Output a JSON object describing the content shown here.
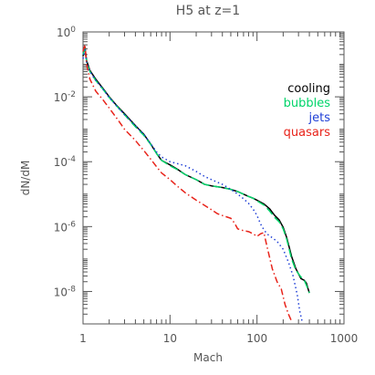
{
  "chart_data": {
    "type": "line",
    "title": "H5  at  z=1",
    "xlabel": "Mach",
    "ylabel": "dN/dM",
    "xscale": "log",
    "yscale": "log",
    "xlim": [
      1,
      1000
    ],
    "ylim": [
      1e-09,
      1
    ],
    "x_ticks": [
      1,
      10,
      100,
      1000
    ],
    "x_tick_labels": [
      "1",
      "10",
      "100",
      "1000"
    ],
    "y_ticks": [
      1,
      0.01,
      0.0001,
      1e-06,
      1e-08
    ],
    "y_tick_labels": [
      {
        "base": "10",
        "exp": "0"
      },
      {
        "base": "10",
        "exp": "-2"
      },
      {
        "base": "10",
        "exp": "-4"
      },
      {
        "base": "10",
        "exp": "-6"
      },
      {
        "base": "10",
        "exp": "-8"
      }
    ],
    "grid": false,
    "legend_position": "top-right",
    "series": [
      {
        "name": "cooling",
        "color": "#000000",
        "dash": "solid",
        "points": [
          [
            1.0,
            0.18
          ],
          [
            1.05,
            0.35
          ],
          [
            1.1,
            0.13
          ],
          [
            1.2,
            0.065
          ],
          [
            1.4,
            0.035
          ],
          [
            1.7,
            0.018
          ],
          [
            2,
            0.01
          ],
          [
            2.5,
            0.005
          ],
          [
            3,
            0.003
          ],
          [
            4,
            0.0013
          ],
          [
            5,
            0.0007
          ],
          [
            6,
            0.00035
          ],
          [
            7,
            0.00018
          ],
          [
            8,
            0.00011
          ],
          [
            10,
            8e-05
          ],
          [
            12,
            6e-05
          ],
          [
            15,
            4e-05
          ],
          [
            20,
            2.8e-05
          ],
          [
            25,
            2e-05
          ],
          [
            30,
            1.8e-05
          ],
          [
            40,
            1.6e-05
          ],
          [
            50,
            1.4e-05
          ],
          [
            60,
            1.2e-05
          ],
          [
            70,
            1e-05
          ],
          [
            80,
            8.5e-06
          ],
          [
            90,
            7.5e-06
          ],
          [
            100,
            6.5e-06
          ],
          [
            120,
            5e-06
          ],
          [
            140,
            3.5e-06
          ],
          [
            160,
            2.2e-06
          ],
          [
            180,
            1.6e-06
          ],
          [
            200,
            9.5e-07
          ],
          [
            220,
            4.5e-07
          ],
          [
            250,
            1.2e-07
          ],
          [
            280,
            5e-08
          ],
          [
            320,
            2.5e-08
          ],
          [
            350,
            2.2e-08
          ],
          [
            370,
            1.8e-08
          ],
          [
            380,
            1.4e-08
          ],
          [
            400,
            9e-09
          ]
        ]
      },
      {
        "name": "bubbles",
        "color": "#00d46a",
        "dash": "long-dash",
        "points": [
          [
            1.0,
            0.2
          ],
          [
            1.05,
            0.3
          ],
          [
            1.1,
            0.12
          ],
          [
            1.2,
            0.06
          ],
          [
            1.4,
            0.032
          ],
          [
            1.7,
            0.017
          ],
          [
            2,
            0.0095
          ],
          [
            2.5,
            0.0048
          ],
          [
            3,
            0.0028
          ],
          [
            4,
            0.0012
          ],
          [
            5,
            0.00065
          ],
          [
            6,
            0.00034
          ],
          [
            7,
            0.00018
          ],
          [
            8,
            0.00011
          ],
          [
            10,
            7.5e-05
          ],
          [
            12,
            5.8e-05
          ],
          [
            15,
            4e-05
          ],
          [
            20,
            2.8e-05
          ],
          [
            25,
            2e-05
          ],
          [
            30,
            1.8e-05
          ],
          [
            40,
            1.6e-05
          ],
          [
            50,
            1.4e-05
          ],
          [
            60,
            1.2e-05
          ],
          [
            70,
            1e-05
          ],
          [
            80,
            8.5e-06
          ],
          [
            90,
            7.5e-06
          ],
          [
            100,
            6.2e-06
          ],
          [
            120,
            4.6e-06
          ],
          [
            140,
            3e-06
          ],
          [
            160,
            1.9e-06
          ],
          [
            180,
            1.4e-06
          ],
          [
            200,
            8.5e-07
          ],
          [
            220,
            4e-07
          ],
          [
            250,
            1e-07
          ],
          [
            280,
            4.5e-08
          ],
          [
            320,
            2.8e-08
          ],
          [
            350,
            2.2e-08
          ],
          [
            380,
            1.3e-08
          ],
          [
            400,
            9e-09
          ]
        ]
      },
      {
        "name": "jets",
        "color": "#1f3fd6",
        "dash": "dotted",
        "points": [
          [
            1.0,
            0.15
          ],
          [
            1.05,
            0.28
          ],
          [
            1.1,
            0.11
          ],
          [
            1.2,
            0.06
          ],
          [
            1.4,
            0.032
          ],
          [
            1.7,
            0.017
          ],
          [
            2,
            0.0095
          ],
          [
            2.5,
            0.0048
          ],
          [
            3,
            0.0028
          ],
          [
            4,
            0.0013
          ],
          [
            5,
            0.0007
          ],
          [
            6,
            0.00036
          ],
          [
            7,
            0.0002
          ],
          [
            8,
            0.00014
          ],
          [
            10,
            0.0001
          ],
          [
            15,
            7.5e-05
          ],
          [
            20,
            5e-05
          ],
          [
            25,
            3.5e-05
          ],
          [
            30,
            2.8e-05
          ],
          [
            40,
            2e-05
          ],
          [
            50,
            1.4e-05
          ],
          [
            60,
            1e-05
          ],
          [
            70,
            7.2e-06
          ],
          [
            80,
            5.2e-06
          ],
          [
            90,
            3.5e-06
          ],
          [
            100,
            2.2e-06
          ],
          [
            110,
            1.2e-06
          ],
          [
            120,
            8e-07
          ],
          [
            130,
            6e-07
          ],
          [
            150,
            4.5e-07
          ],
          [
            170,
            3.5e-07
          ],
          [
            200,
            2e-07
          ],
          [
            230,
            8e-08
          ],
          [
            260,
            3e-08
          ],
          [
            290,
            8e-09
          ],
          [
            310,
            2.5e-09
          ],
          [
            330,
            1.2e-09
          ]
        ]
      },
      {
        "name": "quasars",
        "color": "#e8231a",
        "dash": "dash-dot",
        "points": [
          [
            1.0,
            0.25
          ],
          [
            1.05,
            0.4
          ],
          [
            1.1,
            0.1
          ],
          [
            1.2,
            0.035
          ],
          [
            1.4,
            0.015
          ],
          [
            1.7,
            0.008
          ],
          [
            2,
            0.0045
          ],
          [
            2.5,
            0.002
          ],
          [
            3,
            0.001
          ],
          [
            4,
            0.00045
          ],
          [
            5,
            0.00022
          ],
          [
            6,
            0.00012
          ],
          [
            7,
            7e-05
          ],
          [
            8,
            4.5e-05
          ],
          [
            10,
            2.8e-05
          ],
          [
            12,
            1.8e-05
          ],
          [
            15,
            1.1e-05
          ],
          [
            20,
            6.5e-06
          ],
          [
            25,
            4.5e-06
          ],
          [
            30,
            3.3e-06
          ],
          [
            35,
            2.5e-06
          ],
          [
            40,
            2.2e-06
          ],
          [
            50,
            1.8e-06
          ],
          [
            55,
            1.3e-06
          ],
          [
            60,
            8.5e-07
          ],
          [
            70,
            7.5e-07
          ],
          [
            80,
            7e-07
          ],
          [
            90,
            6e-07
          ],
          [
            100,
            5e-07
          ],
          [
            110,
            6e-07
          ],
          [
            120,
            6.5e-07
          ],
          [
            130,
            2.5e-07
          ],
          [
            150,
            5e-08
          ],
          [
            170,
            2e-08
          ],
          [
            190,
            1.2e-08
          ],
          [
            210,
            4e-09
          ],
          [
            230,
            2e-09
          ],
          [
            250,
            1.2e-09
          ]
        ]
      }
    ]
  }
}
